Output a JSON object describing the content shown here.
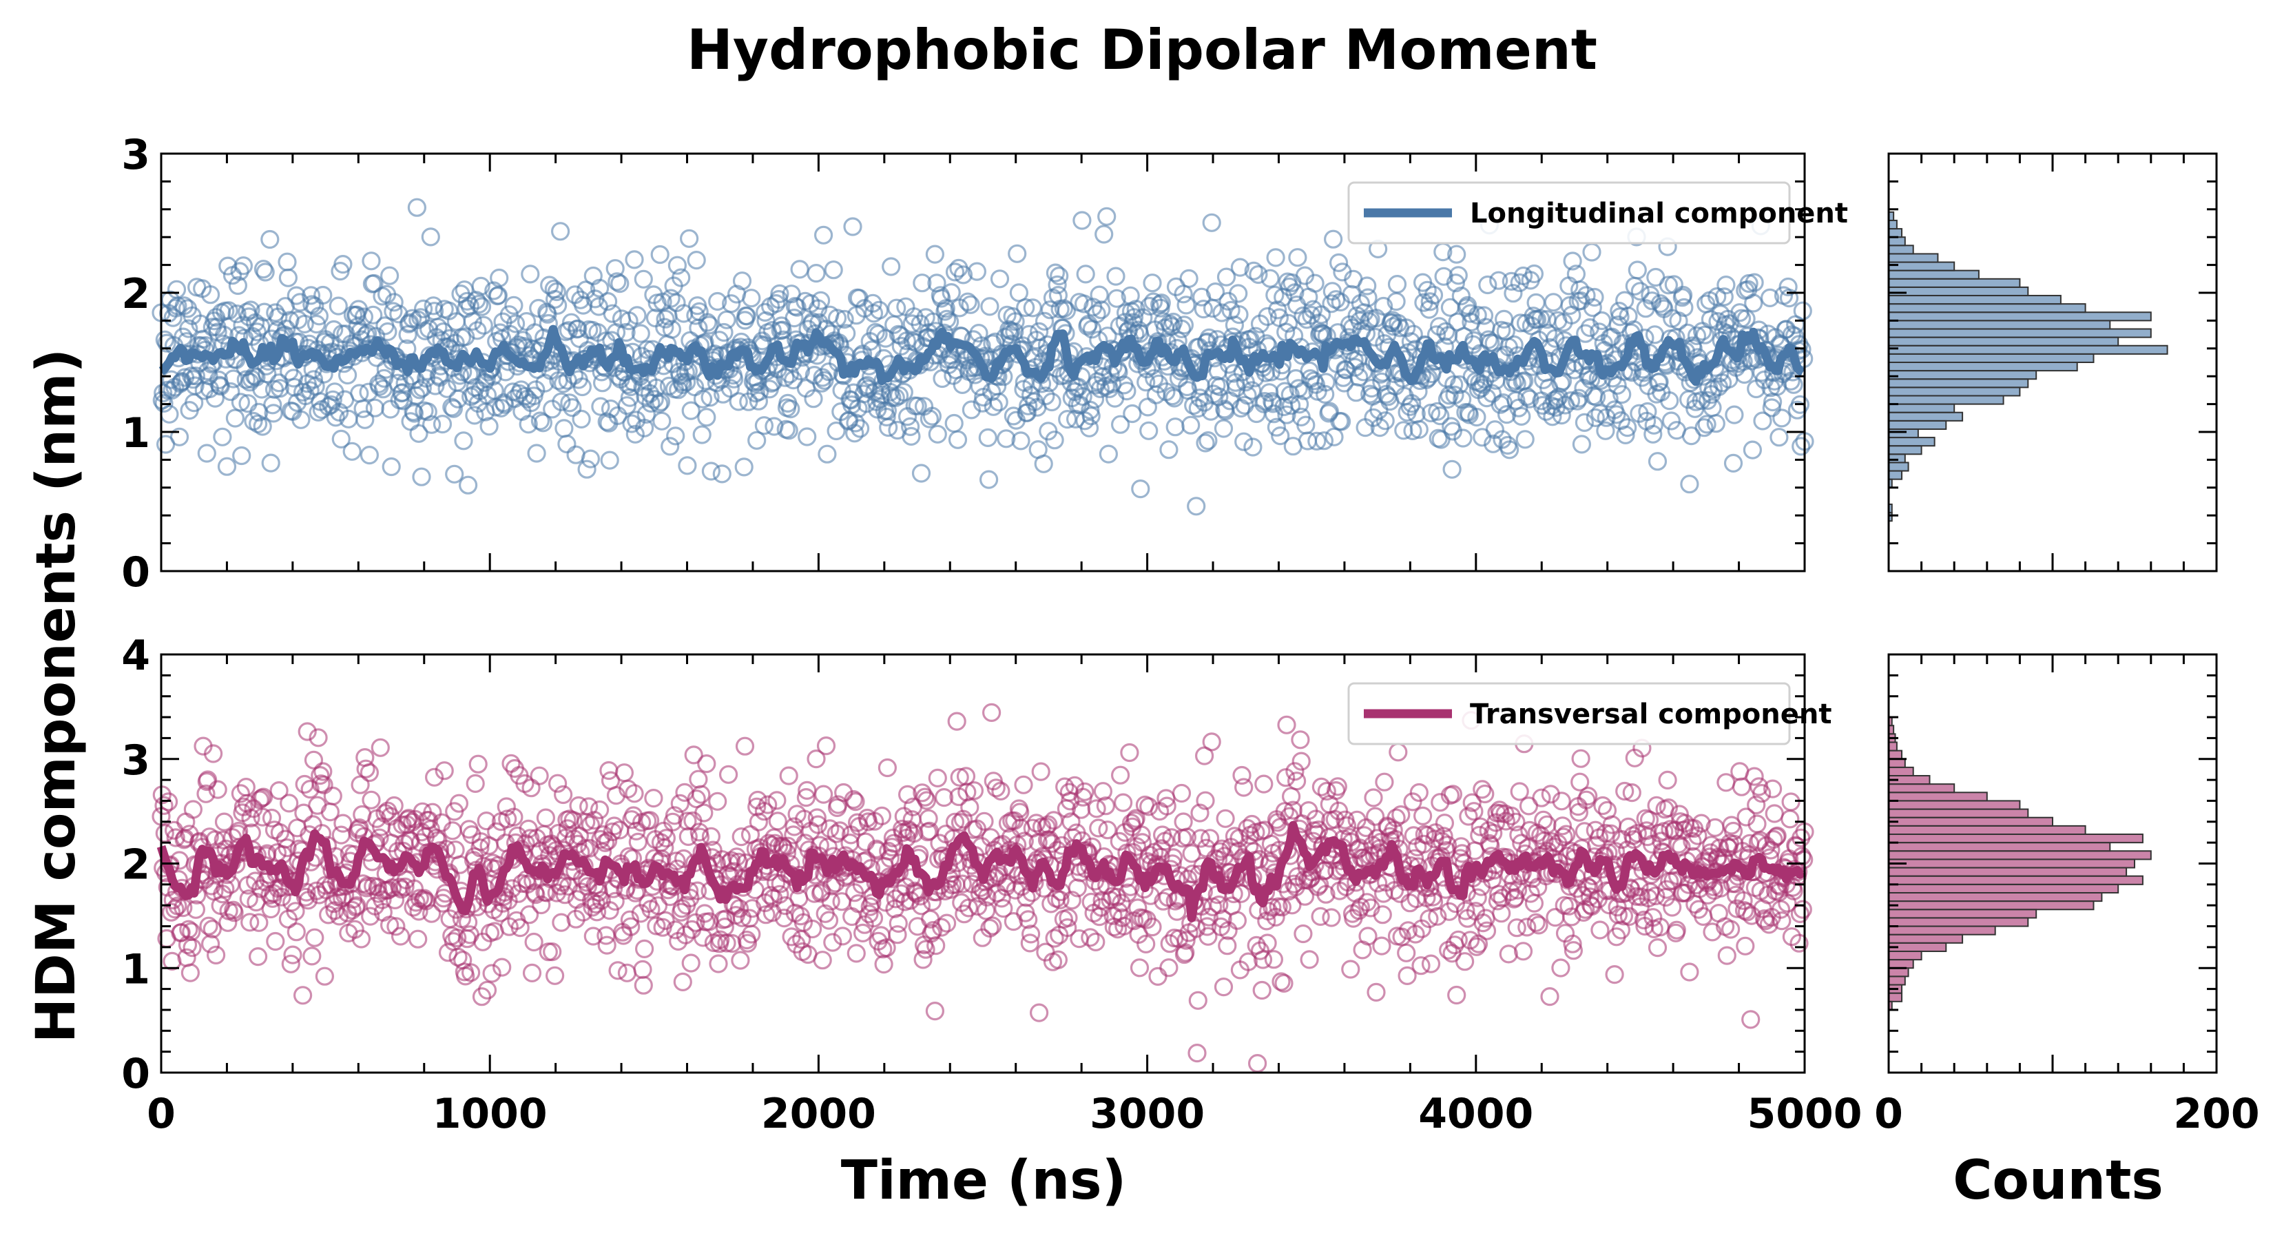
{
  "chart_data": {
    "title": "Hydrophobic Dipolar Moment",
    "ylabel": "HDM components (nm)",
    "xlabel": "Time (ns)",
    "hist_xlabel": "Counts",
    "panels": [
      {
        "type": "scatter",
        "series": [
          {
            "name": "Longitudinal component",
            "color": "#4a78a8",
            "mean": 1.55,
            "sd": 0.33,
            "n_points": 1800
          }
        ],
        "xlim": [
          0,
          5000
        ],
        "ylim": [
          0,
          3
        ],
        "xticks": [
          0,
          1000,
          2000,
          3000,
          4000,
          5000
        ],
        "yticks": [
          0,
          1,
          2,
          3
        ],
        "legend": "top-right",
        "histogram": {
          "xlim": [
            0,
            200
          ],
          "xticks": [
            0,
            200
          ],
          "bin_width": 0.06,
          "bins": [
            {
              "y0": 0.36,
              "count": 2
            },
            {
              "y0": 0.42,
              "count": 2
            },
            {
              "y0": 0.48,
              "count": 0
            },
            {
              "y0": 0.54,
              "count": 0
            },
            {
              "y0": 0.6,
              "count": 2
            },
            {
              "y0": 0.66,
              "count": 8
            },
            {
              "y0": 0.72,
              "count": 12
            },
            {
              "y0": 0.78,
              "count": 10
            },
            {
              "y0": 0.84,
              "count": 20
            },
            {
              "y0": 0.9,
              "count": 28
            },
            {
              "y0": 0.96,
              "count": 18
            },
            {
              "y0": 1.02,
              "count": 35
            },
            {
              "y0": 1.08,
              "count": 45
            },
            {
              "y0": 1.14,
              "count": 40
            },
            {
              "y0": 1.2,
              "count": 70
            },
            {
              "y0": 1.26,
              "count": 80
            },
            {
              "y0": 1.32,
              "count": 85
            },
            {
              "y0": 1.38,
              "count": 90
            },
            {
              "y0": 1.44,
              "count": 115
            },
            {
              "y0": 1.5,
              "count": 125
            },
            {
              "y0": 1.56,
              "count": 170
            },
            {
              "y0": 1.62,
              "count": 140
            },
            {
              "y0": 1.68,
              "count": 160
            },
            {
              "y0": 1.74,
              "count": 135
            },
            {
              "y0": 1.8,
              "count": 160
            },
            {
              "y0": 1.86,
              "count": 120
            },
            {
              "y0": 1.92,
              "count": 105
            },
            {
              "y0": 1.98,
              "count": 85
            },
            {
              "y0": 2.04,
              "count": 80
            },
            {
              "y0": 2.1,
              "count": 55
            },
            {
              "y0": 2.16,
              "count": 40
            },
            {
              "y0": 2.22,
              "count": 30
            },
            {
              "y0": 2.28,
              "count": 15
            },
            {
              "y0": 2.34,
              "count": 10
            },
            {
              "y0": 2.4,
              "count": 8
            },
            {
              "y0": 2.46,
              "count": 5
            },
            {
              "y0": 2.52,
              "count": 3
            }
          ]
        }
      },
      {
        "type": "scatter",
        "series": [
          {
            "name": "Transversal component",
            "color": "#a83270",
            "mean": 1.95,
            "sd": 0.45,
            "n_points": 1800
          }
        ],
        "xlim": [
          0,
          5000
        ],
        "ylim": [
          0,
          4
        ],
        "xticks": [
          0,
          1000,
          2000,
          3000,
          4000,
          5000
        ],
        "xticklabels": [
          "0",
          "1000",
          "2000",
          "3000",
          "4000",
          "5000"
        ],
        "yticks": [
          0,
          1,
          2,
          3,
          4
        ],
        "legend": "top-right",
        "histogram": {
          "xlim": [
            0,
            200
          ],
          "xticks": [
            0,
            200
          ],
          "xticklabels": [
            "0",
            "200"
          ],
          "bin_width": 0.08,
          "bins": [
            {
              "y0": 0.6,
              "count": 2
            },
            {
              "y0": 0.68,
              "count": 8
            },
            {
              "y0": 0.76,
              "count": 8
            },
            {
              "y0": 0.84,
              "count": 10
            },
            {
              "y0": 0.92,
              "count": 12
            },
            {
              "y0": 1.0,
              "count": 15
            },
            {
              "y0": 1.08,
              "count": 20
            },
            {
              "y0": 1.16,
              "count": 35
            },
            {
              "y0": 1.24,
              "count": 45
            },
            {
              "y0": 1.32,
              "count": 65
            },
            {
              "y0": 1.4,
              "count": 85
            },
            {
              "y0": 1.48,
              "count": 90
            },
            {
              "y0": 1.56,
              "count": 125
            },
            {
              "y0": 1.64,
              "count": 130
            },
            {
              "y0": 1.72,
              "count": 140
            },
            {
              "y0": 1.8,
              "count": 155
            },
            {
              "y0": 1.88,
              "count": 145
            },
            {
              "y0": 1.96,
              "count": 150
            },
            {
              "y0": 2.04,
              "count": 160
            },
            {
              "y0": 2.12,
              "count": 135
            },
            {
              "y0": 2.2,
              "count": 155
            },
            {
              "y0": 2.28,
              "count": 120
            },
            {
              "y0": 2.36,
              "count": 100
            },
            {
              "y0": 2.44,
              "count": 85
            },
            {
              "y0": 2.52,
              "count": 80
            },
            {
              "y0": 2.6,
              "count": 60
            },
            {
              "y0": 2.68,
              "count": 40
            },
            {
              "y0": 2.76,
              "count": 25
            },
            {
              "y0": 2.84,
              "count": 15
            },
            {
              "y0": 2.92,
              "count": 10
            },
            {
              "y0": 3.0,
              "count": 8
            },
            {
              "y0": 3.08,
              "count": 5
            },
            {
              "y0": 3.16,
              "count": 4
            },
            {
              "y0": 3.24,
              "count": 3
            },
            {
              "y0": 3.32,
              "count": 2
            }
          ]
        }
      }
    ]
  }
}
